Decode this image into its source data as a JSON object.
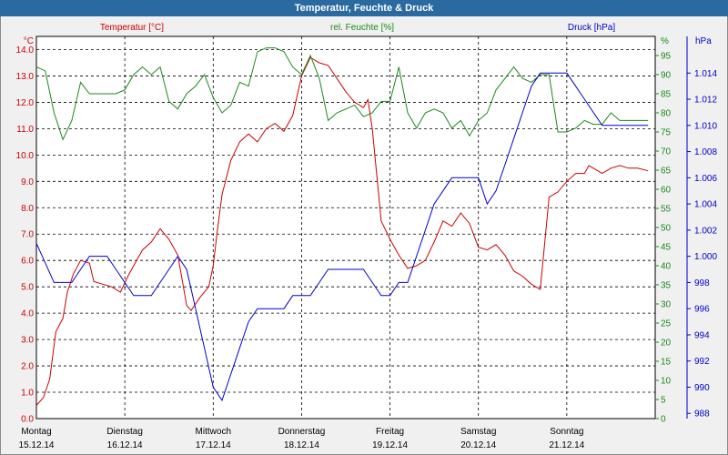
{
  "window": {
    "title": "Temperatur, Feuchte & Druck"
  },
  "colors": {
    "temperature": "#cc0000",
    "humidity": "#1a8a1a",
    "pressure": "#0000cc",
    "grid": "#000000",
    "background": "#ffffff",
    "titlebar": "#2a6aa0"
  },
  "chart_data": {
    "type": "line",
    "title": "Temperatur, Feuchte & Druck",
    "grid": true,
    "x_ticks": [
      {
        "day": "Montag",
        "date": "15.12.14"
      },
      {
        "day": "Dienstag",
        "date": "16.12.14"
      },
      {
        "day": "Mittwoch",
        "date": "17.12.14"
      },
      {
        "day": "Donnerstag",
        "date": "18.12.14"
      },
      {
        "day": "Freitag",
        "date": "19.12.14"
      },
      {
        "day": "Samstag",
        "date": "20.12.14"
      },
      {
        "day": "Sonntag",
        "date": "21.12.14"
      }
    ],
    "axes": {
      "temperature": {
        "label": "Temperatur [°C]",
        "unit": "°C",
        "ylim": [
          0,
          14.5
        ],
        "ticks": [
          "0.0",
          "1.0",
          "2.0",
          "3.0",
          "4.0",
          "5.0",
          "6.0",
          "7.0",
          "8.0",
          "9.0",
          "10.0",
          "11.0",
          "12.0",
          "13.0",
          "14.0"
        ]
      },
      "humidity": {
        "label": "rel. Feuchte [%]",
        "unit": "%",
        "ylim": [
          0,
          100
        ],
        "ticks": [
          "0",
          "5",
          "10",
          "15",
          "20",
          "25",
          "30",
          "35",
          "40",
          "45",
          "50",
          "55",
          "60",
          "65",
          "70",
          "75",
          "80",
          "85",
          "90",
          "95"
        ]
      },
      "pressure": {
        "label": "Druck [hPa]",
        "unit": "hPa",
        "ylim": [
          987.6,
          1016.8
        ],
        "ticks": [
          "988",
          "990",
          "992",
          "994",
          "996",
          "998",
          "1.000",
          "1.002",
          "1.004",
          "1.006",
          "1.008",
          "1.010",
          "1.012",
          "1.014"
        ]
      }
    },
    "series": [
      {
        "name": "Temperatur [°C]",
        "axis": "temperature",
        "x": [
          0,
          0.08,
          0.15,
          0.22,
          0.3,
          0.35,
          0.42,
          0.5,
          0.6,
          0.65,
          0.75,
          0.85,
          0.95,
          1.05,
          1.1,
          1.2,
          1.3,
          1.4,
          1.5,
          1.6,
          1.7,
          1.75,
          1.85,
          1.95,
          2.0,
          2.05,
          2.1,
          2.2,
          2.3,
          2.4,
          2.5,
          2.6,
          2.7,
          2.8,
          2.9,
          3.0,
          3.1,
          3.2,
          3.3,
          3.4,
          3.5,
          3.6,
          3.7,
          3.75,
          3.8,
          3.9,
          4.0,
          4.1,
          4.2,
          4.3,
          4.4,
          4.5,
          4.6,
          4.7,
          4.8,
          4.9,
          5.0,
          5.1,
          5.2,
          5.3,
          5.4,
          5.5,
          5.6,
          5.7,
          5.8,
          5.9,
          6.0,
          6.1,
          6.2,
          6.25,
          6.3,
          6.4,
          6.5,
          6.6,
          6.7,
          6.8,
          6.92
        ],
        "values": [
          0.5,
          0.8,
          1.5,
          3.3,
          3.8,
          4.8,
          5.5,
          6.0,
          5.9,
          5.2,
          5.1,
          5.0,
          4.8,
          5.5,
          5.8,
          6.4,
          6.7,
          7.2,
          6.8,
          6.2,
          4.3,
          4.1,
          4.6,
          5.0,
          5.8,
          7.2,
          8.5,
          9.8,
          10.5,
          10.8,
          10.5,
          11.0,
          11.2,
          10.9,
          11.5,
          13.0,
          13.7,
          13.5,
          13.4,
          12.9,
          12.4,
          12.0,
          11.8,
          12.1,
          11.0,
          7.5,
          6.8,
          6.2,
          5.7,
          5.8,
          6.0,
          6.7,
          7.5,
          7.3,
          7.8,
          7.4,
          6.5,
          6.4,
          6.6,
          6.2,
          5.6,
          5.4,
          5.1,
          4.9,
          8.4,
          8.6,
          9.0,
          9.3,
          9.3,
          9.6,
          9.5,
          9.3,
          9.5,
          9.6,
          9.5,
          9.5,
          9.4
        ]
      },
      {
        "name": "rel. Feuchte [%]",
        "axis": "humidity",
        "x": [
          0,
          0.1,
          0.2,
          0.3,
          0.4,
          0.5,
          0.6,
          0.7,
          0.8,
          0.9,
          1.0,
          1.1,
          1.2,
          1.3,
          1.4,
          1.5,
          1.6,
          1.7,
          1.8,
          1.9,
          2.0,
          2.1,
          2.2,
          2.3,
          2.4,
          2.5,
          2.6,
          2.7,
          2.8,
          2.9,
          3.0,
          3.1,
          3.2,
          3.3,
          3.4,
          3.5,
          3.6,
          3.7,
          3.8,
          3.9,
          4.0,
          4.1,
          4.2,
          4.3,
          4.4,
          4.5,
          4.6,
          4.7,
          4.8,
          4.9,
          5.0,
          5.1,
          5.2,
          5.3,
          5.4,
          5.5,
          5.6,
          5.7,
          5.8,
          5.9,
          6.0,
          6.1,
          6.2,
          6.3,
          6.4,
          6.5,
          6.6,
          6.7,
          6.8,
          6.92
        ],
        "values": [
          92,
          91,
          80,
          73,
          78,
          88,
          85,
          85,
          85,
          85,
          86,
          90,
          92,
          90,
          92,
          83,
          81,
          85,
          87,
          90,
          84,
          80,
          82,
          88,
          87,
          96,
          97,
          97,
          96,
          92,
          90,
          95,
          89,
          78,
          80,
          81,
          82,
          79,
          80,
          83,
          83,
          92,
          80,
          76,
          80,
          81,
          80,
          76,
          78,
          74,
          78,
          80,
          86,
          89,
          92,
          89,
          88,
          90,
          90,
          75,
          75,
          76,
          78,
          77,
          77,
          80,
          78,
          78,
          78,
          78
        ]
      },
      {
        "name": "Druck [hPa]",
        "axis": "pressure",
        "x": [
          0,
          0.2,
          0.4,
          0.5,
          0.6,
          0.7,
          0.8,
          0.9,
          1.0,
          1.1,
          1.2,
          1.3,
          1.4,
          1.5,
          1.6,
          1.7,
          1.8,
          1.9,
          2.0,
          2.1,
          2.2,
          2.3,
          2.4,
          2.5,
          2.6,
          2.7,
          2.8,
          2.9,
          3.0,
          3.1,
          3.2,
          3.3,
          3.4,
          3.5,
          3.6,
          3.7,
          3.8,
          3.9,
          4.0,
          4.1,
          4.2,
          4.3,
          4.4,
          4.5,
          4.6,
          4.7,
          4.8,
          4.9,
          5.0,
          5.1,
          5.2,
          5.3,
          5.4,
          5.5,
          5.6,
          5.7,
          5.8,
          5.9,
          6.0,
          6.1,
          6.2,
          6.3,
          6.4,
          6.5,
          6.6,
          6.7,
          6.8,
          6.92
        ],
        "values": [
          1001,
          998,
          998,
          999,
          1000,
          1000,
          1000,
          999,
          998,
          997,
          997,
          997,
          998,
          999,
          1000,
          999,
          996,
          993,
          990,
          989,
          991,
          993,
          995,
          996,
          996,
          996,
          996,
          997,
          997,
          997,
          998,
          999,
          999,
          999,
          999,
          999,
          998,
          997,
          997,
          998,
          998,
          1000,
          1002,
          1004,
          1005,
          1006,
          1006,
          1006,
          1006,
          1004,
          1005,
          1007,
          1009,
          1011,
          1013,
          1014,
          1014,
          1014,
          1014,
          1013,
          1012,
          1011,
          1010,
          1010,
          1010,
          1010,
          1010,
          1010
        ]
      }
    ]
  }
}
